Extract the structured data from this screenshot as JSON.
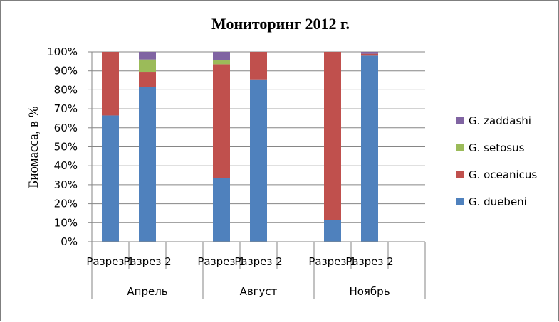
{
  "chart_data": {
    "type": "bar",
    "stacked": true,
    "percent_stacked": true,
    "title": "Мониторинг  2012 г.",
    "ylabel": "Биомасса, в %",
    "xlabel": "",
    "ylim": [
      0,
      100
    ],
    "y_ticks": [
      "0%",
      "10%",
      "20%",
      "30%",
      "40%",
      "50%",
      "60%",
      "70%",
      "80%",
      "90%",
      "100%"
    ],
    "grid": true,
    "legend_position": "right",
    "groups": [
      {
        "label": "Апрель",
        "categories": [
          "Разрез 1",
          "Разрез 2"
        ]
      },
      {
        "label": "Август",
        "categories": [
          "Разрез 1",
          "Разрез 2"
        ]
      },
      {
        "label": "Ноябрь",
        "categories": [
          "Разрез 1",
          "Разрез 2"
        ]
      }
    ],
    "categories": [
      "Разрез 1",
      "Разрез 2",
      "Разрез 1",
      "Разрез 2",
      "Разрез 1",
      "Разрез 2"
    ],
    "series": [
      {
        "name": "G. duebeni",
        "color": "#4f81bd",
        "values": [
          66.5,
          81.5,
          33.5,
          85.5,
          11.5,
          98
        ]
      },
      {
        "name": "G. oceanicus",
        "color": "#c0504d",
        "values": [
          33.5,
          8,
          60,
          14.5,
          88.5,
          1
        ]
      },
      {
        "name": "G. setosus",
        "color": "#9bbb59",
        "values": [
          0,
          6.5,
          2,
          0,
          0,
          0
        ]
      },
      {
        "name": "G. zaddashi",
        "color": "#8064a2",
        "values": [
          0,
          4,
          4.5,
          0,
          0,
          1
        ]
      }
    ]
  }
}
